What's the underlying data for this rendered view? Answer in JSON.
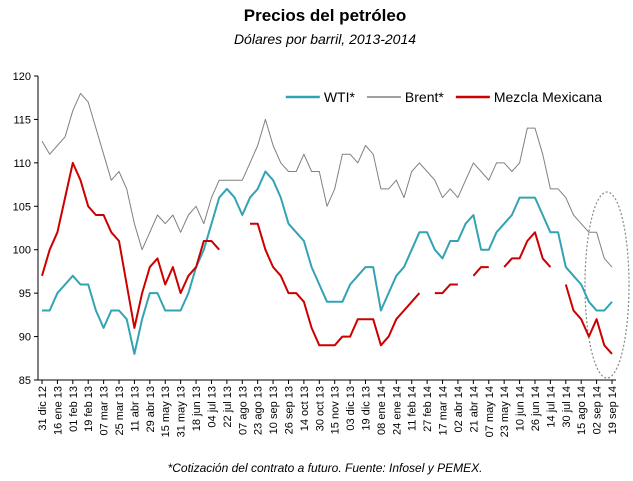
{
  "chart_data": {
    "type": "line",
    "title": "Precios del petróleo",
    "subtitle": "Dólares por barril, 2013-2014",
    "footnote": "*Cotización del contrato a futuro. Fuente: Infosel y PEMEX.",
    "categories": [
      "31 dic 12",
      null,
      "16 ene 13",
      null,
      "01 feb 13",
      null,
      "19 feb 13",
      null,
      "07 mar 13",
      null,
      "25 mar 13",
      null,
      "11 abr 13",
      null,
      "29 abr 13",
      null,
      "15 may 13",
      null,
      "31 may 13",
      null,
      "18 jun 13",
      null,
      "04 jul 13",
      null,
      "22 jul 13",
      null,
      "07 ago 13",
      null,
      "23 ago 13",
      null,
      "10 sep 13",
      null,
      "26 sep 13",
      null,
      "14 oct 13",
      null,
      "30 oct 13",
      null,
      "15 nov 13",
      null,
      "03 dic 13",
      null,
      "19 dic 13",
      null,
      "08 ene 14",
      null,
      "24 ene 14",
      null,
      "11 feb 14",
      null,
      "27 feb 14",
      null,
      "17 mar 14",
      null,
      "02 abr 14",
      null,
      "21 abr 14",
      null,
      "07 may 14",
      null,
      "23 may 14",
      null,
      "10 jun 14",
      null,
      "26 jun 14",
      null,
      "14 jul 14",
      null,
      "30 jul 14",
      null,
      "15 ago 14",
      null,
      "02 sep 14",
      null,
      "19 sep 14"
    ],
    "series": [
      {
        "name": "WTI*",
        "color": "#33a3b4",
        "width": 2,
        "values": [
          93,
          93,
          95,
          96,
          97,
          96,
          96,
          93,
          91,
          93,
          93,
          92,
          88,
          92,
          95,
          95,
          93,
          93,
          93,
          95,
          98,
          100,
          103,
          106,
          107,
          106,
          104,
          106,
          107,
          109,
          108,
          106,
          103,
          102,
          101,
          98,
          96,
          94,
          94,
          94,
          96,
          97,
          98,
          98,
          93,
          95,
          97,
          98,
          100,
          102,
          102,
          100,
          99,
          101,
          101,
          103,
          104,
          100,
          100,
          102,
          103,
          104,
          106,
          106,
          106,
          104,
          102,
          102,
          98,
          97,
          96,
          94,
          93,
          93,
          94
        ]
      },
      {
        "name": "Brent*",
        "color": "#808080",
        "width": 1,
        "values": [
          112.5,
          111,
          112,
          113,
          116,
          118,
          117,
          114,
          111,
          108,
          109,
          107,
          103,
          100,
          102,
          104,
          103,
          104,
          102,
          104,
          105,
          103,
          106,
          108,
          108,
          108,
          108,
          110,
          112,
          115,
          112,
          110,
          109,
          109,
          111,
          109,
          109,
          105,
          107,
          111,
          111,
          110,
          112,
          111,
          107,
          107,
          108,
          106,
          109,
          110,
          109,
          108,
          106,
          107,
          106,
          108,
          110,
          109,
          108,
          110,
          110,
          109,
          110,
          114,
          114,
          111,
          107,
          107,
          106,
          104,
          103,
          102,
          102,
          99,
          98
        ]
      },
      {
        "name": "Mezcla Mexicana",
        "color": "#cc0000",
        "width": 2,
        "values": [
          97,
          100,
          102,
          106,
          110,
          108,
          105,
          104,
          104,
          102,
          101,
          96,
          91,
          95,
          98,
          99,
          96,
          98,
          95,
          97,
          98,
          101,
          101,
          100,
          null,
          102,
          null,
          103,
          103,
          100,
          98,
          97,
          95,
          95,
          94,
          91,
          89,
          89,
          89,
          90,
          90,
          92,
          92,
          92,
          89,
          90,
          92,
          93,
          94,
          95,
          null,
          95,
          95,
          96,
          96,
          null,
          97,
          98,
          98,
          null,
          98,
          99,
          99,
          101,
          102,
          99,
          98,
          null,
          96,
          93,
          92,
          90,
          92,
          89,
          88
        ]
      }
    ],
    "ylim": [
      85,
      120
    ],
    "yticks": [
      85,
      90,
      95,
      100,
      105,
      110,
      115,
      120
    ],
    "grid": false,
    "legend": "top-right"
  }
}
